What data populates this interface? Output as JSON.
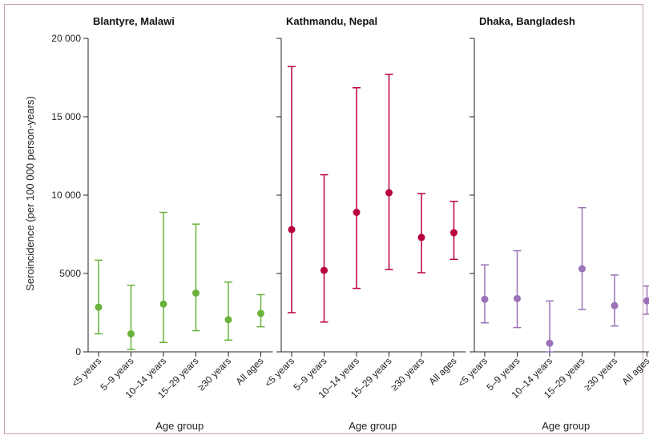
{
  "chart_data": {
    "type": "scatter",
    "subtype": "point-with-error-bars",
    "ylabel": "Seroincidence (per 100 000 person-years)",
    "xlabel": "Age group",
    "ylim": [
      0,
      20000
    ],
    "yticks": [
      0,
      5000,
      10000,
      15000,
      20000
    ],
    "ytick_labels": [
      "0",
      "5000",
      "10 000",
      "15 000",
      "20 000"
    ],
    "categories": [
      "<5 years",
      "5–9 years",
      "10–14 years",
      "15–29 years",
      "≥30 years",
      "All ages"
    ],
    "panels": [
      {
        "title": "Blantyre, Malawi",
        "color": "#6ab23c",
        "points": [
          {
            "value": 2850,
            "lower": 1150,
            "upper": 5850
          },
          {
            "value": 1150,
            "lower": 150,
            "upper": 4250
          },
          {
            "value": 3050,
            "lower": 600,
            "upper": 8900
          },
          {
            "value": 3750,
            "lower": 1350,
            "upper": 8150
          },
          {
            "value": 2050,
            "lower": 750,
            "upper": 4450
          },
          {
            "value": 2450,
            "lower": 1600,
            "upper": 3650
          }
        ]
      },
      {
        "title": "Kathmandu, Nepal",
        "color": "#b8003c",
        "points": [
          {
            "value": 7800,
            "lower": 2500,
            "upper": 18200
          },
          {
            "value": 5200,
            "lower": 1900,
            "upper": 11300
          },
          {
            "value": 8900,
            "lower": 4050,
            "upper": 16850
          },
          {
            "value": 10150,
            "lower": 5250,
            "upper": 17700
          },
          {
            "value": 7300,
            "lower": 5050,
            "upper": 10100
          },
          {
            "value": 7600,
            "lower": 5900,
            "upper": 9600
          }
        ]
      },
      {
        "title": "Dhaka, Bangladesh",
        "color": "#9b72b8",
        "points": [
          {
            "value": 3350,
            "lower": 1850,
            "upper": 5550
          },
          {
            "value": 3400,
            "lower": 1550,
            "upper": 6450
          },
          {
            "value": 550,
            "lower": 0,
            "upper": 3250
          },
          {
            "value": 5300,
            "lower": 2700,
            "upper": 9200
          },
          {
            "value": 2950,
            "lower": 1650,
            "upper": 4900
          },
          {
            "value": 3250,
            "lower": 2400,
            "upper": 4200
          }
        ]
      }
    ]
  }
}
